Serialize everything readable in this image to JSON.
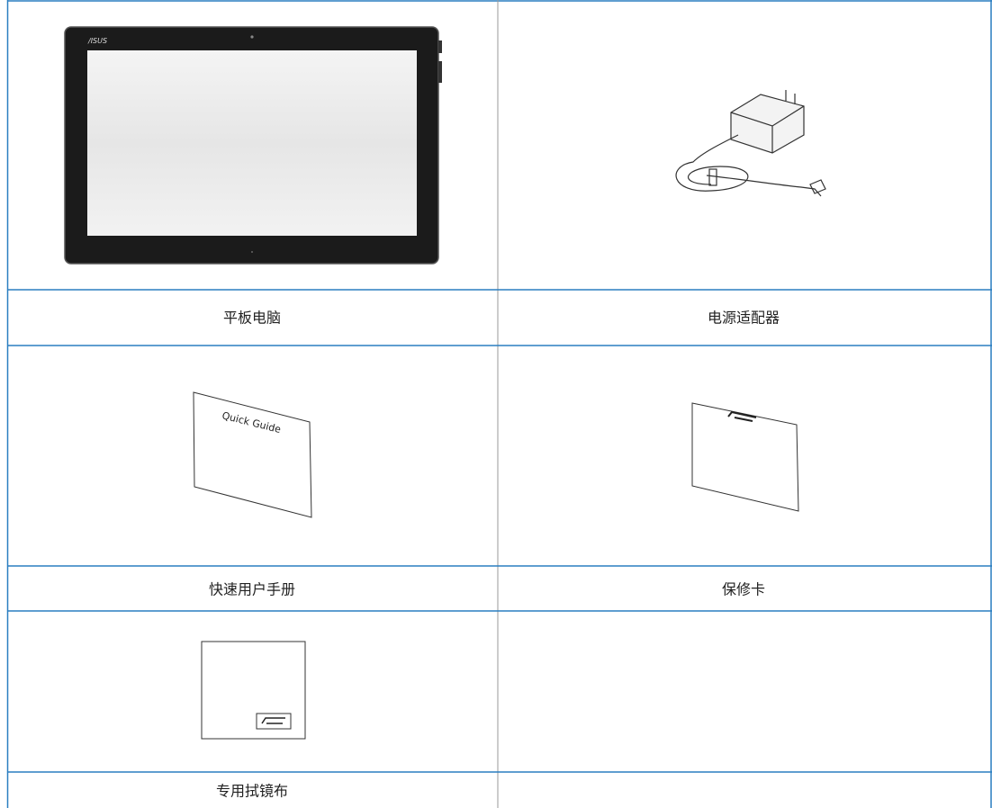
{
  "items": [
    {
      "label": "平板电脑"
    },
    {
      "label": "电源适配器"
    },
    {
      "label": "快速用户手册",
      "cover_text": "Quick Guide"
    },
    {
      "label": "保修卡"
    },
    {
      "label": "专用拭镜布"
    }
  ]
}
